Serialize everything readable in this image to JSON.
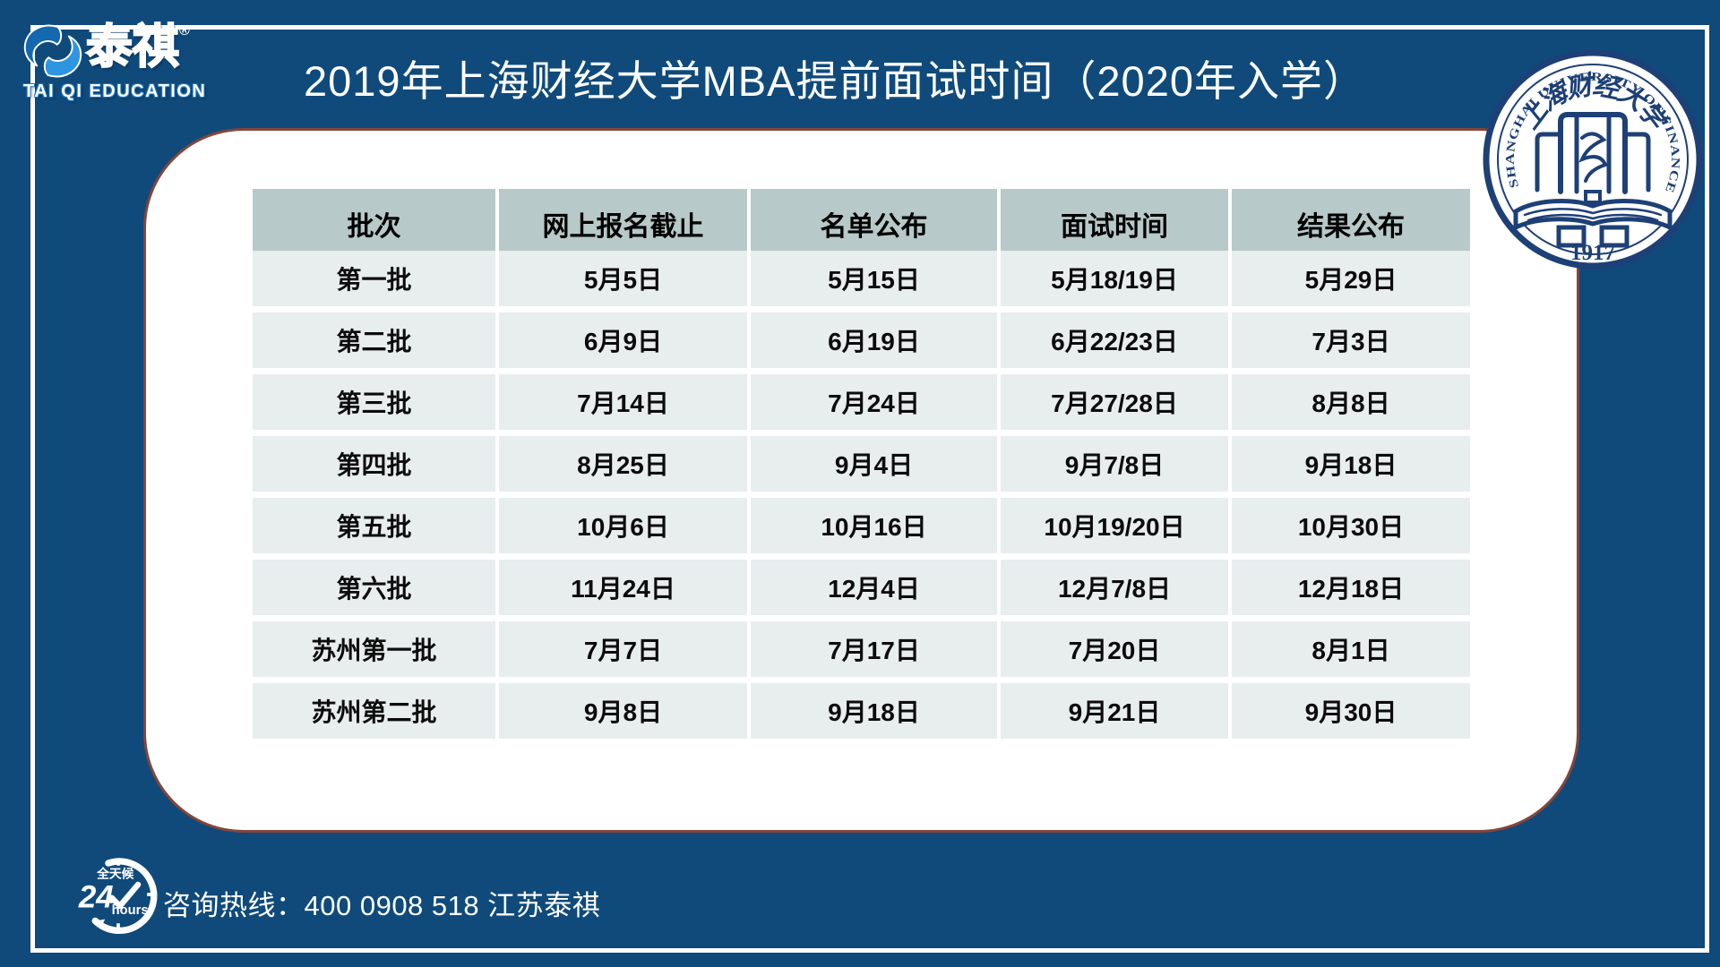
{
  "page": {
    "background_color": "#0f4a7b",
    "frame_color": "#ffffff",
    "card_border_color": "#84453a"
  },
  "logo": {
    "brand_cn": "泰祺",
    "reg_mark": "®",
    "brand_en": "TAI QI EDUCATION",
    "icon": "taiqi-swirl-icon",
    "colors": {
      "orange": "#f8a61e",
      "blue_dark": "#1468b0",
      "blue_light": "#2e96e0"
    }
  },
  "header": {
    "title": "2019年上海财经大学MBA提前面试时间（2020年入学）"
  },
  "seal": {
    "ring_text": "SHANGHAI UNIVERSITY OF FINANCE & ECONOMICS",
    "center_cn": "上海财经大学",
    "chars": [
      "上",
      "海",
      "财",
      "经",
      "大",
      "学"
    ],
    "year": "1917",
    "color": "#1d4076"
  },
  "table": {
    "header_bg": "#b7c9c8",
    "row_bg": "#e8edee",
    "headers": [
      "批次",
      "网上报名截止",
      "名单公布",
      "面试时间",
      "结果公布"
    ],
    "rows": [
      [
        "第一批",
        "5月5日",
        "5月15日",
        "5月18/19日",
        "5月29日"
      ],
      [
        "第二批",
        "6月9日",
        "6月19日",
        "6月22/23日",
        "7月3日"
      ],
      [
        "第三批",
        "7月14日",
        "7月24日",
        "7月27/28日",
        "8月8日"
      ],
      [
        "第四批",
        "8月25日",
        "9月4日",
        "9月7/8日",
        "9月18日"
      ],
      [
        "第五批",
        "10月6日",
        "10月16日",
        "10月19/20日",
        "10月30日"
      ],
      [
        "第六批",
        "11月24日",
        "12月4日",
        "12月7/8日",
        "12月18日"
      ],
      [
        "苏州第一批",
        "7月7日",
        "7月17日",
        "7月20日",
        "8月1日"
      ],
      [
        "苏州第二批",
        "9月8日",
        "9月18日",
        "9月21日",
        "9月30日"
      ]
    ]
  },
  "footer": {
    "hotline": "咨询热线：400 0908 518 江苏泰祺",
    "badge": {
      "top": "全天候",
      "number": "24",
      "unit": "hours"
    }
  }
}
